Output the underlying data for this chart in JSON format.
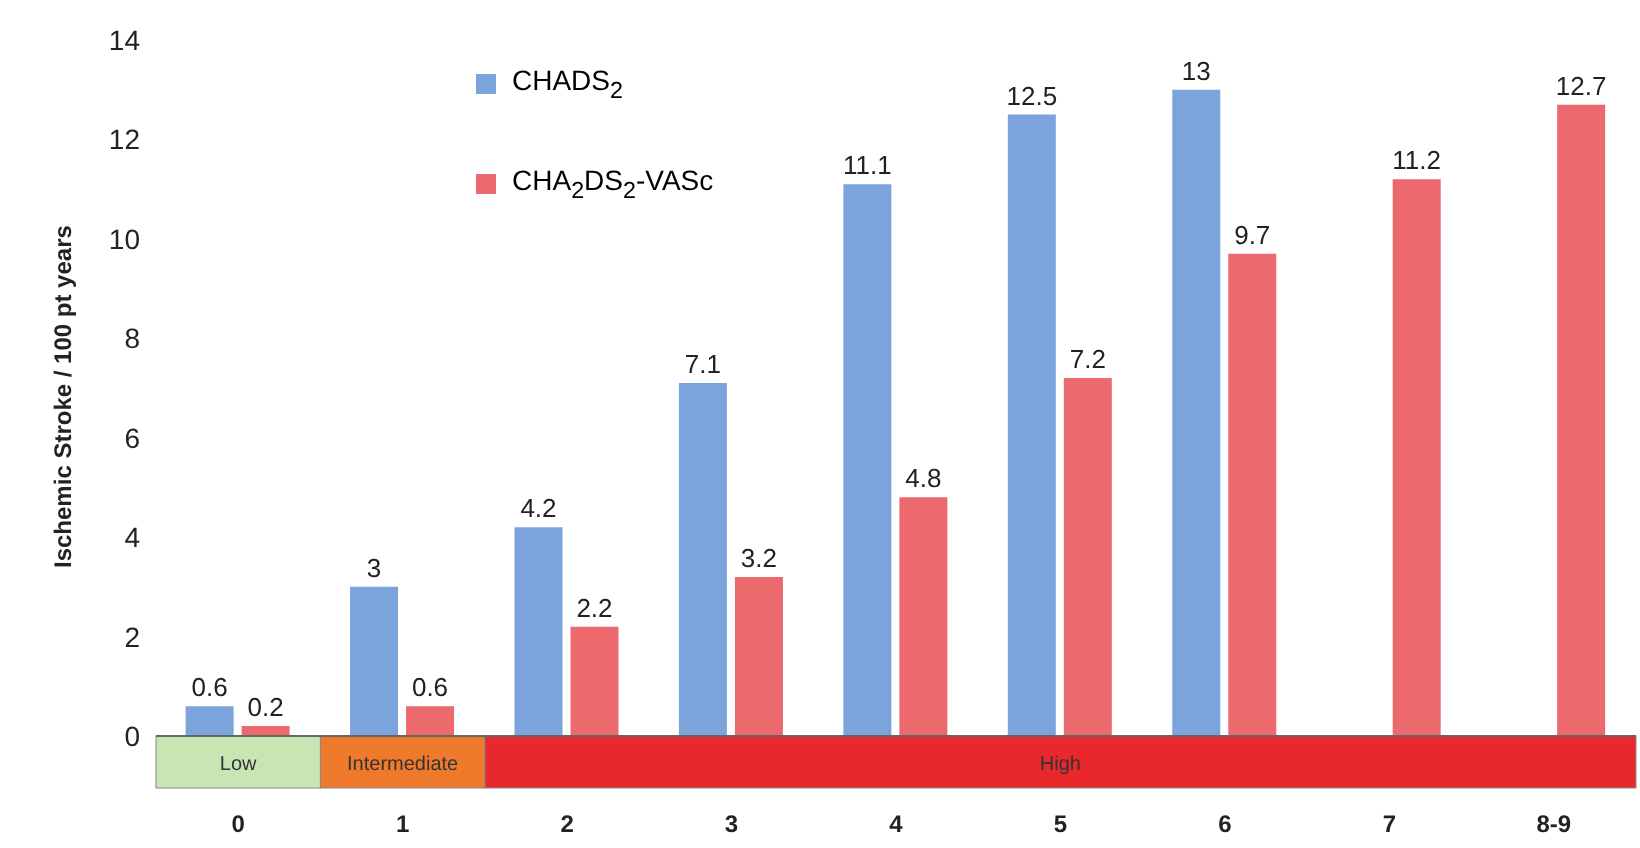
{
  "chart_data": {
    "type": "bar",
    "ylabel": "Ischemic Stroke / 100 pt years",
    "categories": [
      "0",
      "1",
      "2",
      "3",
      "4",
      "5",
      "6",
      "7",
      "8-9"
    ],
    "series": [
      {
        "name": "CHADS$_{2}$",
        "color": "#7ba4dc",
        "values": [
          0.6,
          3,
          4.2,
          7.1,
          11.1,
          12.5,
          13,
          null,
          null
        ]
      },
      {
        "name": "CHA$_{2}$DS$_{2}$-VASc",
        "color": "#ec6a6e",
        "values": [
          0.2,
          0.6,
          2.2,
          3.2,
          4.8,
          7.2,
          9.7,
          11.2,
          12.7
        ]
      }
    ],
    "ylim": [
      0,
      14
    ],
    "yticks": [
      0,
      2,
      4,
      6,
      8,
      10,
      12,
      14
    ],
    "grid": false,
    "legend": "top left",
    "data_labels": true,
    "annotations": [
      "Low",
      "Intermediate",
      "High"
    ]
  }
}
